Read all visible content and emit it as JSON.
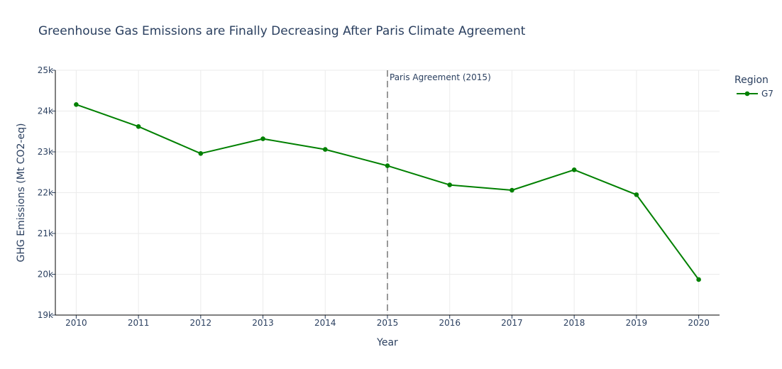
{
  "chart_data": {
    "type": "line",
    "title": "Greenhouse Gas Emissions are Finally Decreasing After Paris Climate Agreement",
    "xlabel": "Year",
    "ylabel": "GHG Emissions (Mt CO2-eq)",
    "x": [
      2010,
      2011,
      2012,
      2013,
      2014,
      2015,
      2016,
      2017,
      2018,
      2019,
      2020
    ],
    "x_tick_labels": [
      "2010",
      "2011",
      "2012",
      "2013",
      "2014",
      "2015",
      "2016",
      "2017",
      "2018",
      "2019",
      "2020"
    ],
    "ylim": [
      19000,
      25000
    ],
    "y_ticks": [
      19000,
      20000,
      21000,
      22000,
      23000,
      24000,
      25000
    ],
    "y_tick_labels": [
      "19k",
      "20k",
      "21k",
      "22k",
      "23k",
      "24k",
      "25k"
    ],
    "grid": true,
    "legend": {
      "title": "Region",
      "position": "top-right"
    },
    "series": [
      {
        "name": "G7",
        "color": "#008000",
        "values": [
          24160,
          23620,
          22960,
          23320,
          23060,
          22660,
          22190,
          22060,
          22560,
          21950,
          19870
        ]
      }
    ],
    "annotations": [
      {
        "type": "vline",
        "x": 2015,
        "label": "Paris Agreement (2015)",
        "color": "#555555",
        "dash": "dashed"
      }
    ]
  }
}
